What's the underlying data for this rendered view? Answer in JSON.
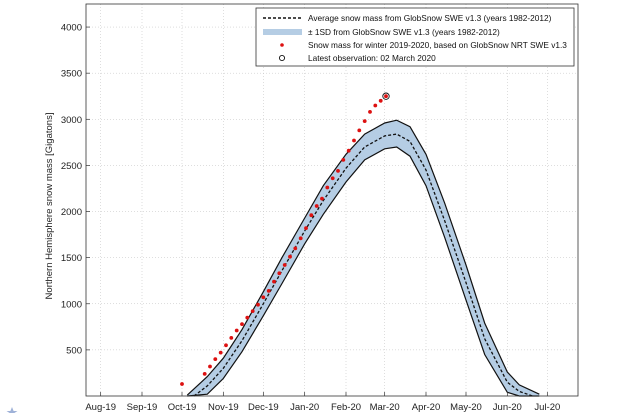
{
  "chart_data": {
    "type": "line",
    "ylabel": "Northern Hemisphere snow mass [Gigatons]",
    "xlabel": "",
    "ylim": [
      0,
      4250
    ],
    "yticks": [
      500,
      1000,
      1500,
      2000,
      2500,
      3000,
      3500,
      4000
    ],
    "xticks": [
      {
        "label": "Aug-19",
        "date": "2019-08-01"
      },
      {
        "label": "Sep-19",
        "date": "2019-09-01"
      },
      {
        "label": "Oct-19",
        "date": "2019-10-01"
      },
      {
        "label": "Nov-19",
        "date": "2019-11-01"
      },
      {
        "label": "Dec-19",
        "date": "2019-12-01"
      },
      {
        "label": "Jan-20",
        "date": "2020-01-01"
      },
      {
        "label": "Feb-20",
        "date": "2020-02-01"
      },
      {
        "label": "Mar-20",
        "date": "2020-03-01"
      },
      {
        "label": "Apr-20",
        "date": "2020-04-01"
      },
      {
        "label": "May-20",
        "date": "2020-05-01"
      },
      {
        "label": "Jun-20",
        "date": "2020-06-01"
      },
      {
        "label": "Jul-20",
        "date": "2020-07-01"
      }
    ],
    "grid": true,
    "legend_position": "top-right",
    "legend": [
      {
        "label": "Average snow mass from GlobSnow SWE v1.3 (years 1982-2012)",
        "symbol": "dashed-line"
      },
      {
        "label": "± 1SD from GlobSnow SWE v1.3 (years 1982-2012)",
        "symbol": "band"
      },
      {
        "label": "Snow mass for winter 2019-2020, based on GlobSnow NRT SWE v1.3",
        "symbol": "red-dot"
      },
      {
        "label": "Latest observation: 02 March 2020",
        "symbol": "open-circle"
      }
    ],
    "series": [
      {
        "name": "Average snow mass from GlobSnow SWE v1.3 (years 1982-2012)",
        "dates": [
          "2019-10-10",
          "2019-10-20",
          "2019-11-01",
          "2019-11-15",
          "2019-12-01",
          "2019-12-15",
          "2020-01-01",
          "2020-01-15",
          "2020-02-01",
          "2020-02-15",
          "2020-03-01",
          "2020-03-10",
          "2020-03-20",
          "2020-04-01",
          "2020-04-15",
          "2020-05-01",
          "2020-05-15",
          "2020-06-01",
          "2020-06-10",
          "2020-06-20"
        ],
        "values": [
          0,
          110,
          300,
          600,
          1000,
          1360,
          1790,
          2120,
          2470,
          2700,
          2820,
          2840,
          2760,
          2450,
          1900,
          1230,
          620,
          150,
          50,
          0
        ]
      },
      {
        "name": "± 1SD from GlobSnow SWE v1.3 (years 1982-2012)",
        "dates": [
          "2019-10-05",
          "2019-10-20",
          "2019-11-01",
          "2019-11-15",
          "2019-12-01",
          "2019-12-15",
          "2020-01-01",
          "2020-01-15",
          "2020-02-01",
          "2020-02-15",
          "2020-03-01",
          "2020-03-10",
          "2020-03-20",
          "2020-04-01",
          "2020-04-15",
          "2020-05-01",
          "2020-05-15",
          "2020-06-01",
          "2020-06-10",
          "2020-06-25"
        ],
        "upper": [
          10,
          210,
          410,
          720,
          1130,
          1500,
          1930,
          2280,
          2620,
          2840,
          2960,
          2990,
          2920,
          2620,
          2090,
          1420,
          790,
          260,
          120,
          20
        ],
        "lower": [
          0,
          20,
          190,
          480,
          870,
          1220,
          1650,
          1970,
          2320,
          2560,
          2680,
          2700,
          2600,
          2280,
          1720,
          1040,
          450,
          40,
          0,
          0
        ]
      },
      {
        "name": "Snow mass for winter 2019-2020, based on GlobSnow NRT SWE v1.3",
        "dates": [
          "2019-10-01",
          "2019-10-18",
          "2019-10-22",
          "2019-10-26",
          "2019-10-30",
          "2019-11-03",
          "2019-11-07",
          "2019-11-11",
          "2019-11-15",
          "2019-11-19",
          "2019-11-23",
          "2019-11-27",
          "2019-12-01",
          "2019-12-05",
          "2019-12-09",
          "2019-12-13",
          "2019-12-17",
          "2019-12-21",
          "2019-12-25",
          "2019-12-29",
          "2020-01-02",
          "2020-01-06",
          "2020-01-10",
          "2020-01-14",
          "2020-01-18",
          "2020-01-22",
          "2020-01-26",
          "2020-01-30",
          "2020-02-03",
          "2020-02-07",
          "2020-02-11",
          "2020-02-15",
          "2020-02-19",
          "2020-02-23",
          "2020-02-27"
        ],
        "values": [
          130,
          240,
          320,
          400,
          470,
          550,
          630,
          710,
          780,
          850,
          920,
          990,
          1070,
          1140,
          1240,
          1330,
          1420,
          1510,
          1600,
          1710,
          1820,
          1960,
          2060,
          2140,
          2260,
          2360,
          2440,
          2560,
          2660,
          2770,
          2880,
          2980,
          3080,
          3150,
          3200
        ]
      },
      {
        "name": "Latest observation: 02 March 2020",
        "dates": [
          "2020-03-02"
        ],
        "values": [
          3250
        ]
      }
    ]
  }
}
